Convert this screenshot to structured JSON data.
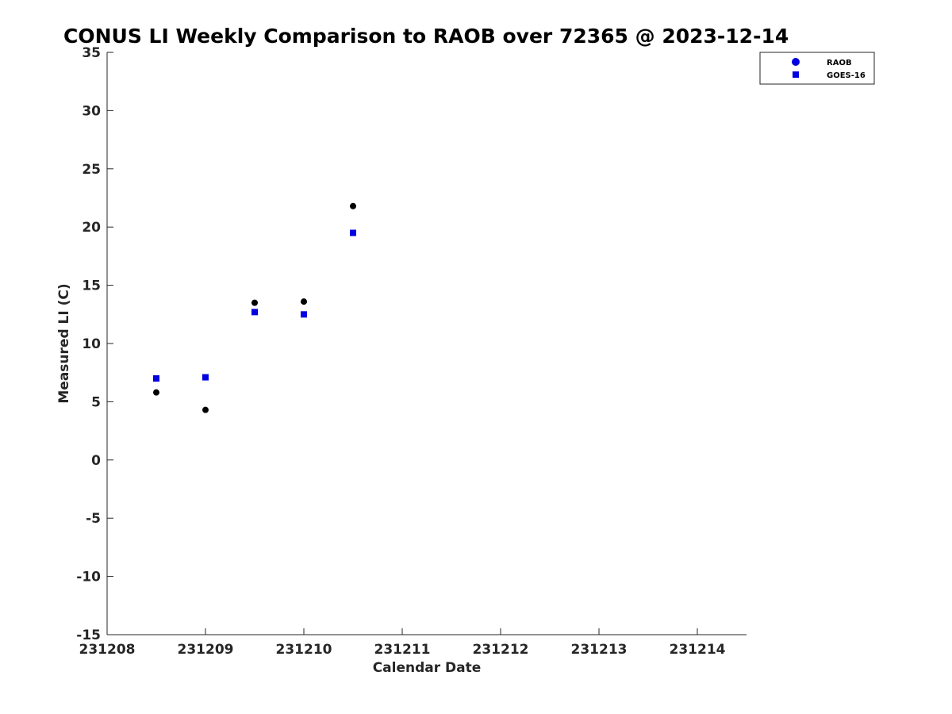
{
  "chart_data": {
    "type": "scatter",
    "title": "CONUS LI Weekly Comparison to RAOB over 72365 @ 2023-12-14",
    "xlabel": "Calendar Date",
    "ylabel": "Measured LI (C)",
    "xlim": [
      231208,
      231214.5
    ],
    "ylim": [
      -15,
      35
    ],
    "x_ticks": [
      231208,
      231209,
      231210,
      231211,
      231212,
      231213,
      231214
    ],
    "x_tick_labels": [
      "231208",
      "231209",
      "231210",
      "231211",
      "231212",
      "231213",
      "231214"
    ],
    "y_ticks": [
      35,
      30,
      25,
      20,
      15,
      10,
      5,
      0,
      -5,
      -10,
      -15
    ],
    "y_tick_labels": [
      "35",
      "30",
      "25",
      "20",
      "15",
      "10",
      "5",
      "0",
      "-5",
      "-10",
      "-15"
    ],
    "grid": false,
    "legend": "top-right",
    "series": [
      {
        "name": "RAOB",
        "marker": "circle",
        "color": "#000000",
        "legend_color": "#0000e0",
        "x": [
          231208.5,
          231209.0,
          231209.5,
          231210.0,
          231210.5
        ],
        "y": [
          5.8,
          4.3,
          13.5,
          13.6,
          21.8
        ]
      },
      {
        "name": "GOES-16",
        "marker": "square",
        "color": "#0000e0",
        "legend_color": "#0000e0",
        "x": [
          231208.5,
          231209.0,
          231209.5,
          231210.0,
          231210.5
        ],
        "y": [
          7.0,
          7.1,
          12.7,
          12.5,
          19.5
        ]
      }
    ]
  }
}
